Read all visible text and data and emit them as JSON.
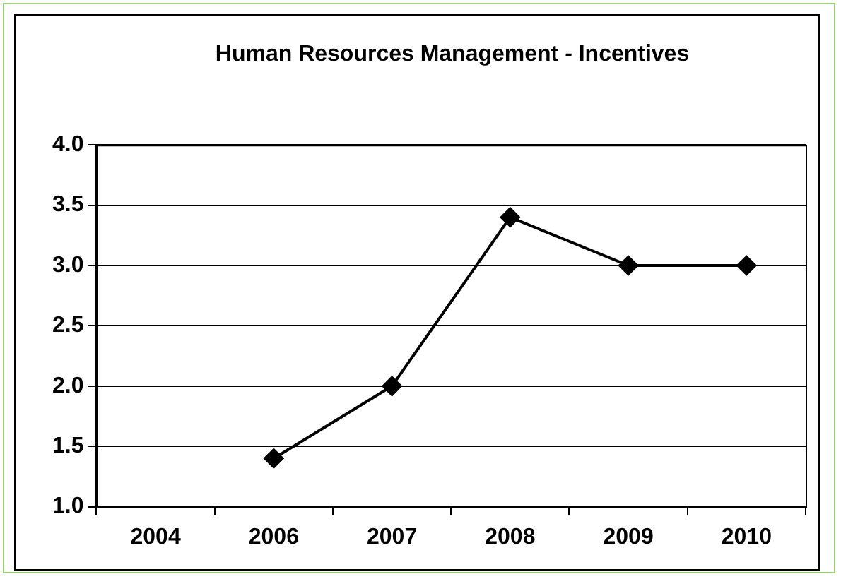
{
  "chart_data": {
    "type": "line",
    "title": "Human Resources Management - Incentives",
    "categories": [
      "2004",
      "2006",
      "2007",
      "2008",
      "2009",
      "2010"
    ],
    "series": [
      {
        "color": "#000000",
        "values": [
          null,
          1.4,
          2.0,
          3.4,
          3.0,
          3.0
        ]
      }
    ],
    "ylim": [
      1.0,
      4.0
    ],
    "yticks": [
      {
        "value": 1.0,
        "label": "1.0"
      },
      {
        "value": 1.5,
        "label": "1.5"
      },
      {
        "value": 2.0,
        "label": "2.0"
      },
      {
        "value": 2.5,
        "label": "2.5"
      },
      {
        "value": 3.0,
        "label": "3.0"
      },
      {
        "value": 3.5,
        "label": "3.5"
      },
      {
        "value": 4.0,
        "label": "4.0"
      }
    ],
    "grid": "y",
    "legend": false,
    "marker": "diamond",
    "line_style": "solid"
  }
}
